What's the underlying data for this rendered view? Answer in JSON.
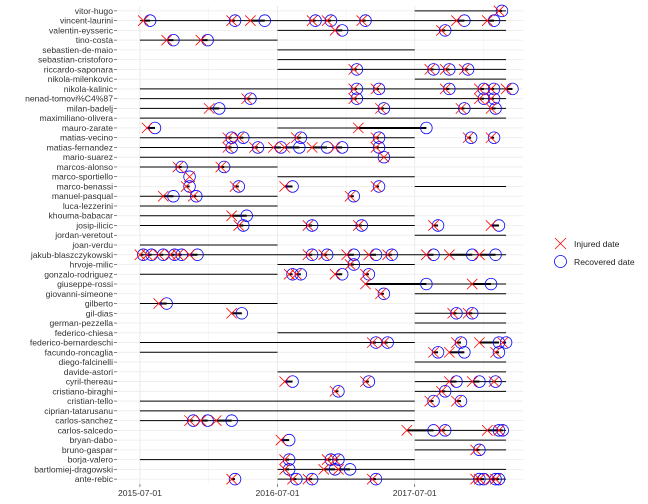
{
  "chart_data": {
    "type": "scatter",
    "title": "",
    "xlabel": "",
    "ylabel": "",
    "x_ticks": [
      "2015-07-01",
      "2016-07-01",
      "2017-07-01"
    ],
    "xlim": [
      "2015-05-01",
      "2018-04-15"
    ],
    "grid": true,
    "legend_position": "right",
    "legend": [
      {
        "key": "injured",
        "label": "Injured date",
        "color": "#ff0000",
        "shape": "x"
      },
      {
        "key": "recovered",
        "label": "Recovered date",
        "color": "#0000ff",
        "shape": "circle"
      }
    ],
    "players": [
      {
        "name": "vitor-hugo",
        "contract": [
          "2017-07-01",
          "2018-03-01"
        ],
        "injuries": [
          [
            "2018-02-10",
            "2018-02-18"
          ]
        ]
      },
      {
        "name": "vincent-laurini",
        "contract": [
          "2015-07-01",
          "2018-03-01"
        ],
        "injuries": [
          [
            "2015-07-10",
            "2015-07-28"
          ],
          [
            "2016-03-01",
            "2016-03-10"
          ],
          [
            "2016-04-20",
            "2016-05-28"
          ],
          [
            "2016-10-01",
            "2016-10-10"
          ],
          [
            "2016-11-10",
            "2016-11-20"
          ],
          [
            "2017-02-10",
            "2017-02-20"
          ],
          [
            "2017-10-20",
            "2017-11-10"
          ],
          [
            "2018-01-10",
            "2018-01-28"
          ]
        ]
      },
      {
        "name": "valentin-eysseric",
        "contract": [
          "2016-07-01",
          "2018-03-01"
        ],
        "injuries": [
          [
            "2016-12-01",
            "2016-12-20"
          ],
          [
            "2017-09-10",
            "2017-09-20"
          ]
        ]
      },
      {
        "name": "tino-costa",
        "contract": [
          "2015-07-01",
          "2016-07-01"
        ],
        "injuries": [
          [
            "2015-09-10",
            "2015-09-28"
          ],
          [
            "2015-12-10",
            "2015-12-28"
          ]
        ]
      },
      {
        "name": "sebastien-de-maio",
        "contract": [
          "2016-07-01",
          "2017-07-01"
        ],
        "injuries": []
      },
      {
        "name": "sebastian-cristoforo",
        "contract": [
          "2016-07-01",
          "2018-03-01"
        ],
        "injuries": []
      },
      {
        "name": "riccardo-saponara",
        "contract": [
          "2016-07-01",
          "2018-03-01"
        ],
        "injuries": [
          [
            "2017-01-20",
            "2017-01-28"
          ],
          [
            "2017-08-10",
            "2017-08-20"
          ],
          [
            "2017-09-20",
            "2017-10-01"
          ],
          [
            "2017-11-10",
            "2017-11-20"
          ]
        ]
      },
      {
        "name": "nikola-milenkovic",
        "contract": [
          "2017-07-01",
          "2018-03-01"
        ],
        "injuries": []
      },
      {
        "name": "nikola-kalinic",
        "contract": [
          "2015-07-01",
          "2018-03-01"
        ],
        "injuries": [
          [
            "2017-01-20",
            "2017-01-28"
          ],
          [
            "2017-03-20",
            "2017-03-28"
          ],
          [
            "2017-09-20",
            "2017-10-01"
          ],
          [
            "2017-12-20",
            "2018-01-01"
          ],
          [
            "2018-01-20",
            "2018-01-28"
          ],
          [
            "2018-03-01",
            "2018-03-18"
          ]
        ]
      },
      {
        "name": "nenad-tomovi%C4%87",
        "contract": [
          "2015-07-01",
          "2018-03-01"
        ],
        "injuries": [
          [
            "2016-04-10",
            "2016-04-20"
          ],
          [
            "2017-01-20",
            "2017-01-28"
          ],
          [
            "2017-12-20",
            "2018-01-01"
          ],
          [
            "2018-01-20",
            "2018-01-28"
          ]
        ]
      },
      {
        "name": "milan-badelj",
        "contract": [
          "2015-07-01",
          "2018-03-01"
        ],
        "injuries": [
          [
            "2016-01-01",
            "2016-01-28"
          ],
          [
            "2017-04-01",
            "2017-04-10"
          ],
          [
            "2017-11-01",
            "2017-11-10"
          ],
          [
            "2018-01-20",
            "2018-02-01"
          ]
        ]
      },
      {
        "name": "maximiliano-olivera",
        "contract": [
          "2015-07-01",
          "2018-03-01"
        ],
        "injuries": []
      },
      {
        "name": "mauro-zarate",
        "contract": [
          "2016-07-01",
          "2017-07-01"
        ],
        "injuries": [
          [
            "2015-07-20",
            "2015-08-10"
          ],
          [
            "2017-02-01",
            "2017-08-01"
          ]
        ]
      },
      {
        "name": "matias-vecino",
        "contract": [
          "2015-07-01",
          "2017-07-01"
        ],
        "injuries": [
          [
            "2016-02-20",
            "2016-03-01"
          ],
          [
            "2016-03-20",
            "2016-04-01"
          ],
          [
            "2016-08-20",
            "2016-09-01"
          ],
          [
            "2017-03-20",
            "2017-03-28"
          ],
          [
            "2017-11-20",
            "2017-11-28"
          ],
          [
            "2018-01-20",
            "2018-01-28"
          ]
        ]
      },
      {
        "name": "matias-fernandez",
        "contract": [
          "2015-07-01",
          "2017-07-01"
        ],
        "injuries": [
          [
            "2016-02-20",
            "2016-03-01"
          ],
          [
            "2016-05-01",
            "2016-05-10"
          ],
          [
            "2016-06-20",
            "2016-07-10"
          ],
          [
            "2016-07-20",
            "2016-08-28"
          ],
          [
            "2016-10-01",
            "2016-11-10"
          ],
          [
            "2016-12-01",
            "2016-12-20"
          ],
          [
            "2017-03-20",
            "2017-03-28"
          ]
        ]
      },
      {
        "name": "mario-suarez",
        "contract": [
          "2015-07-01",
          "2017-07-01"
        ],
        "injuries": [
          [
            "2017-04-10",
            "2017-04-10"
          ]
        ]
      },
      {
        "name": "marcos-alonso",
        "contract": [
          "2015-07-01",
          "2016-07-01"
        ],
        "injuries": [
          [
            "2015-10-10",
            "2015-10-20"
          ],
          [
            "2016-02-01",
            "2016-02-10"
          ]
        ]
      },
      {
        "name": "marco-sportiello",
        "contract": [
          "2016-07-01",
          "2017-07-01"
        ],
        "injuries": [
          [
            "2015-11-10",
            "2015-11-10"
          ]
        ]
      },
      {
        "name": "marco-benassi",
        "contract": [
          "2017-07-01",
          "2018-03-01"
        ],
        "injuries": [
          [
            "2015-11-01",
            "2015-11-10"
          ],
          [
            "2016-03-10",
            "2016-03-20"
          ],
          [
            "2016-07-20",
            "2016-08-10"
          ],
          [
            "2017-03-20",
            "2017-03-28"
          ]
        ]
      },
      {
        "name": "manuel-pasqual",
        "contract": [
          "2015-07-01",
          "2016-07-01"
        ],
        "injuries": [
          [
            "2015-09-01",
            "2015-09-28"
          ],
          [
            "2015-11-20",
            "2015-11-28"
          ],
          [
            "2017-01-10",
            "2017-01-20"
          ]
        ]
      },
      {
        "name": "luca-lezzerini",
        "contract": [
          "2015-07-01",
          "2016-07-01"
        ],
        "injuries": []
      },
      {
        "name": "khouma-babacar",
        "contract": [
          "2015-07-01",
          "2017-07-01"
        ],
        "injuries": [
          [
            "2016-03-01",
            "2016-04-10"
          ]
        ]
      },
      {
        "name": "josip-ilicic",
        "contract": [
          "2015-07-01",
          "2017-07-01"
        ],
        "injuries": [
          [
            "2016-03-20",
            "2016-04-01"
          ],
          [
            "2016-09-20",
            "2016-10-01"
          ],
          [
            "2017-02-01",
            "2017-02-10"
          ],
          [
            "2017-08-20",
            "2017-09-01"
          ],
          [
            "2018-01-20",
            "2018-02-10"
          ]
        ]
      },
      {
        "name": "jordan-veretout",
        "contract": [
          "2017-07-01",
          "2018-03-01"
        ],
        "injuries": []
      },
      {
        "name": "joan-verdu",
        "contract": [
          "2015-07-01",
          "2016-07-01"
        ],
        "injuries": []
      },
      {
        "name": "jakub-blaszczykowski",
        "contract": [
          "2015-07-01",
          "2018-03-01"
        ],
        "injuries": [
          [
            "2015-07-01",
            "2015-07-10"
          ],
          [
            "2015-07-20",
            "2015-08-01"
          ],
          [
            "2015-08-20",
            "2015-09-01"
          ],
          [
            "2015-09-20",
            "2015-10-01"
          ],
          [
            "2015-10-10",
            "2015-10-20"
          ],
          [
            "2015-11-10",
            "2015-12-01"
          ],
          [
            "2016-09-20",
            "2016-10-01"
          ],
          [
            "2016-11-01",
            "2016-11-10"
          ],
          [
            "2017-01-01",
            "2017-01-20"
          ],
          [
            "2017-03-01",
            "2017-03-20"
          ],
          [
            "2017-04-20",
            "2017-05-01"
          ],
          [
            "2017-08-01",
            "2017-08-20"
          ],
          [
            "2017-10-01",
            "2017-12-01"
          ],
          [
            "2017-12-20",
            "2018-02-01"
          ]
        ]
      },
      {
        "name": "hrvoje-milic",
        "contract": [
          "2016-07-01",
          "2017-07-01"
        ],
        "injuries": [
          [
            "2017-01-10",
            "2017-01-20"
          ]
        ]
      },
      {
        "name": "gonzalo-rodriguez",
        "contract": [
          "2015-07-01",
          "2016-07-01"
        ],
        "injuries": [
          [
            "2016-08-01",
            "2016-08-10"
          ],
          [
            "2016-08-20",
            "2016-09-01"
          ],
          [
            "2016-12-01",
            "2016-12-20"
          ],
          [
            "2017-02-20",
            "2017-03-01"
          ]
        ]
      },
      {
        "name": "giuseppe-rossi",
        "contract": [
          "2017-07-01",
          "2018-03-01"
        ],
        "injuries": [
          [
            "2017-02-20",
            "2017-08-01"
          ],
          [
            "2017-12-01",
            "2018-01-20"
          ]
        ]
      },
      {
        "name": "giovanni-simeone",
        "contract": [
          "2017-07-01",
          "2018-03-01"
        ],
        "injuries": [
          [
            "2017-04-01",
            "2017-04-10"
          ]
        ]
      },
      {
        "name": "gilberto",
        "contract": [
          "2015-07-01",
          "2016-07-01"
        ],
        "injuries": [
          [
            "2015-08-20",
            "2015-09-10"
          ]
        ]
      },
      {
        "name": "gil-dias",
        "contract": [
          "2017-07-01",
          "2018-03-01"
        ],
        "injuries": [
          [
            "2016-03-01",
            "2016-03-28"
          ],
          [
            "2017-10-10",
            "2017-10-20"
          ],
          [
            "2017-11-20",
            "2017-12-01"
          ]
        ]
      },
      {
        "name": "german-pezzella",
        "contract": [
          "2017-07-01",
          "2018-03-01"
        ],
        "injuries": []
      },
      {
        "name": "federico-chiesa",
        "contract": [
          "2016-07-01",
          "2018-03-01"
        ],
        "injuries": []
      },
      {
        "name": "federico-bernardeschi",
        "contract": [
          "2015-07-01",
          "2017-07-01"
        ],
        "injuries": [
          [
            "2017-03-10",
            "2017-03-20"
          ],
          [
            "2017-04-10",
            "2017-04-20"
          ],
          [
            "2017-10-20",
            "2017-11-01"
          ],
          [
            "2017-12-20",
            "2018-02-10"
          ],
          [
            "2018-02-20",
            "2018-03-01"
          ]
        ]
      },
      {
        "name": "facundo-roncaglia",
        "contract": [
          "2015-07-01",
          "2016-07-01"
        ],
        "injuries": [
          [
            "2017-08-20",
            "2017-09-01"
          ],
          [
            "2017-10-01",
            "2017-11-10"
          ],
          [
            "2018-02-01",
            "2018-02-10"
          ]
        ]
      },
      {
        "name": "diego-falcinelli",
        "contract": [
          "2017-07-01",
          "2018-03-01"
        ],
        "injuries": []
      },
      {
        "name": "davide-astori",
        "contract": [
          "2016-07-01",
          "2018-03-01"
        ],
        "injuries": []
      },
      {
        "name": "cyril-thereau",
        "contract": [
          "2017-07-01",
          "2018-03-01"
        ],
        "injuries": [
          [
            "2016-07-20",
            "2016-08-10"
          ],
          [
            "2017-02-20",
            "2017-03-01"
          ],
          [
            "2017-10-01",
            "2017-10-20"
          ],
          [
            "2017-12-01",
            "2017-12-20"
          ],
          [
            "2018-01-28",
            "2018-02-01"
          ]
        ]
      },
      {
        "name": "cristiano-biraghi",
        "contract": [
          "2017-07-01",
          "2018-03-01"
        ],
        "injuries": [
          [
            "2016-12-01",
            "2016-12-10"
          ],
          [
            "2017-09-10",
            "2017-09-20"
          ]
        ]
      },
      {
        "name": "cristian-tello",
        "contract": [
          "2015-07-01",
          "2017-07-01"
        ],
        "injuries": [
          [
            "2017-08-10",
            "2017-08-20"
          ],
          [
            "2017-10-20",
            "2017-11-01"
          ]
        ]
      },
      {
        "name": "ciprian-tatarusanu",
        "contract": [
          "2015-07-01",
          "2017-07-01"
        ],
        "injuries": []
      },
      {
        "name": "carlos-sanchez",
        "contract": [
          "2015-07-01",
          "2017-07-01"
        ],
        "injuries": [
          [
            "2015-11-10",
            "2015-11-20"
          ],
          [
            "2015-12-10",
            "2015-12-28"
          ],
          [
            "2016-01-20",
            "2016-03-01"
          ]
        ]
      },
      {
        "name": "carlos-salcedo",
        "contract": [
          "2017-07-01",
          "2018-03-01"
        ],
        "injuries": [
          [
            "2017-06-10",
            "2017-08-20"
          ],
          [
            "2017-09-10",
            "2017-09-20"
          ],
          [
            "2018-01-10",
            "2018-02-10"
          ],
          [
            "2018-02-10",
            "2018-02-20"
          ]
        ]
      },
      {
        "name": "bryan-dabo",
        "contract": [
          "2017-07-01",
          "2018-03-01"
        ],
        "injuries": [
          [
            "2016-07-10",
            "2016-08-01"
          ]
        ]
      },
      {
        "name": "bruno-gaspar",
        "contract": [
          "2017-07-01",
          "2018-03-01"
        ],
        "injuries": [
          [
            "2017-12-10",
            "2017-12-20"
          ]
        ]
      },
      {
        "name": "borja-valero",
        "contract": [
          "2015-07-01",
          "2017-07-01"
        ],
        "injuries": [
          [
            "2016-07-20",
            "2016-08-01"
          ],
          [
            "2016-11-10",
            "2016-11-20"
          ],
          [
            "2016-12-01",
            "2016-12-10"
          ]
        ]
      },
      {
        "name": "bartlomiej-dragowski",
        "contract": [
          "2016-07-01",
          "2018-03-01"
        ],
        "injuries": [
          [
            "2016-07-20",
            "2016-08-01"
          ],
          [
            "2016-11-01",
            "2016-12-01"
          ],
          [
            "2016-12-10",
            "2017-01-10"
          ]
        ]
      },
      {
        "name": "ante-rebic",
        "contract": [
          "2016-07-01",
          "2018-03-01"
        ],
        "injuries": [
          [
            "2016-03-01",
            "2016-03-10"
          ],
          [
            "2016-08-10",
            "2016-08-20"
          ],
          [
            "2016-09-20",
            "2016-10-01"
          ],
          [
            "2017-03-10",
            "2017-03-20"
          ],
          [
            "2017-12-10",
            "2017-12-20"
          ],
          [
            "2017-12-20",
            "2018-01-01"
          ],
          [
            "2018-01-20",
            "2018-02-01"
          ],
          [
            "2018-02-01",
            "2018-02-10"
          ]
        ]
      }
    ]
  }
}
